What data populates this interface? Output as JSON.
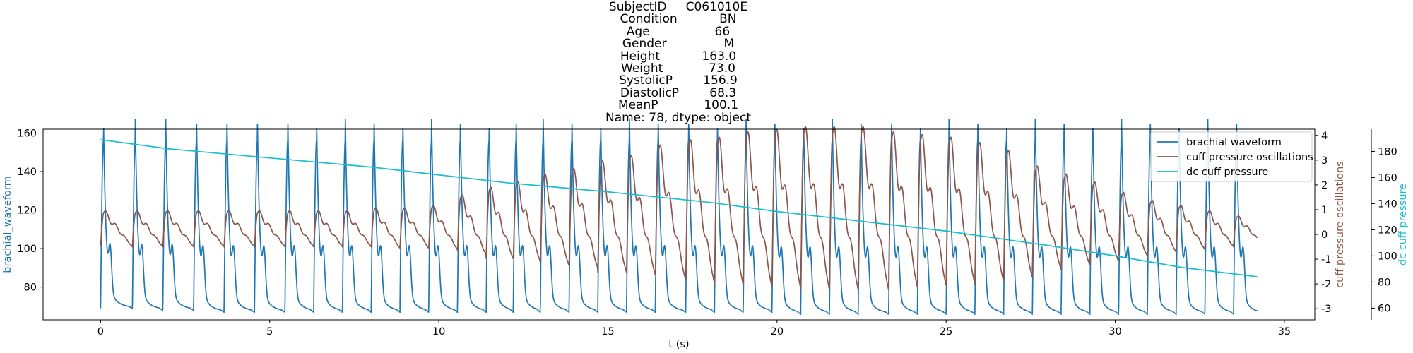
{
  "title_lines": [
    "SubjectID     C061010E",
    "Condition           BN",
    "Age                 66",
    "Gender               M",
    "Height           163.0",
    "Weight            73.0",
    "SystolicP        156.9",
    "DiastolicP        68.3",
    "MeanP            100.1",
    "Name: 78, dtype: object"
  ],
  "colors": {
    "brachial": "#1f77b4",
    "cuff_osc": "#8c564b",
    "dc_cuff": "#17becf"
  },
  "chart_data": {
    "type": "line",
    "x_axis": {
      "label": "t (s)",
      "lim": [
        -1.7,
        35.9
      ],
      "ticks": [
        0,
        5,
        10,
        15,
        20,
        25,
        30,
        35
      ]
    },
    "left_axis": {
      "label": "brachial_waveform",
      "lim": [
        63,
        162
      ],
      "ticks": [
        80,
        100,
        120,
        140,
        160
      ]
    },
    "right_axis_1": {
      "label": "cuff pressure oscillations",
      "lim": [
        -3.45,
        4.25
      ],
      "ticks": [
        -3,
        -2,
        -1,
        0,
        1,
        2,
        3,
        4
      ]
    },
    "right_axis_2": {
      "label": "dc cuff pressure",
      "lim": [
        51,
        197
      ],
      "ticks": [
        60,
        80,
        100,
        120,
        140,
        160,
        180
      ]
    },
    "legend": {
      "placement": "upper right",
      "entries": [
        "brachial waveform",
        "cuff pressure oscillations",
        "dc cuff pressure"
      ]
    },
    "grid": false,
    "series": [
      {
        "name": "brachial waveform",
        "axis": "left",
        "x_range": [
          0,
          34.2
        ],
        "beats": [
          {
            "t": 0.0,
            "min": 69,
            "max": 156
          },
          {
            "t": 0.94,
            "min": 68,
            "max": 156
          },
          {
            "t": 1.84,
            "min": 68,
            "max": 156
          },
          {
            "t": 2.75,
            "min": 67,
            "max": 156
          },
          {
            "t": 3.65,
            "min": 67,
            "max": 156
          },
          {
            "t": 4.55,
            "min": 67,
            "max": 156
          },
          {
            "t": 5.45,
            "min": 67,
            "max": 156
          },
          {
            "t": 6.3,
            "min": 67,
            "max": 156
          },
          {
            "t": 7.15,
            "min": 67,
            "max": 156
          },
          {
            "t": 8.0,
            "min": 67,
            "max": 156
          },
          {
            "t": 8.85,
            "min": 67,
            "max": 156
          },
          {
            "t": 9.7,
            "min": 67,
            "max": 156
          },
          {
            "t": 10.55,
            "min": 67,
            "max": 156
          },
          {
            "t": 11.4,
            "min": 67,
            "max": 156
          },
          {
            "t": 12.2,
            "min": 67,
            "max": 156
          },
          {
            "t": 13.0,
            "min": 67,
            "max": 156
          },
          {
            "t": 13.85,
            "min": 67,
            "max": 156
          },
          {
            "t": 14.7,
            "min": 67,
            "max": 156
          },
          {
            "t": 15.55,
            "min": 67,
            "max": 156
          },
          {
            "t": 16.4,
            "min": 67,
            "max": 156
          },
          {
            "t": 17.3,
            "min": 67,
            "max": 156
          },
          {
            "t": 18.15,
            "min": 67,
            "max": 156
          },
          {
            "t": 19.0,
            "min": 67,
            "max": 156
          },
          {
            "t": 19.85,
            "min": 66,
            "max": 156
          },
          {
            "t": 20.7,
            "min": 66,
            "max": 156
          },
          {
            "t": 21.55,
            "min": 66,
            "max": 156
          },
          {
            "t": 22.4,
            "min": 66,
            "max": 156
          },
          {
            "t": 23.3,
            "min": 66,
            "max": 156
          },
          {
            "t": 24.15,
            "min": 66,
            "max": 156
          },
          {
            "t": 25.0,
            "min": 66,
            "max": 156
          },
          {
            "t": 25.85,
            "min": 66,
            "max": 156
          },
          {
            "t": 26.7,
            "min": 66,
            "max": 156
          },
          {
            "t": 27.55,
            "min": 66,
            "max": 156
          },
          {
            "t": 28.4,
            "min": 66,
            "max": 156
          },
          {
            "t": 29.25,
            "min": 66,
            "max": 156
          },
          {
            "t": 30.1,
            "min": 66,
            "max": 156
          },
          {
            "t": 30.95,
            "min": 66,
            "max": 156
          },
          {
            "t": 31.8,
            "min": 66,
            "max": 156
          },
          {
            "t": 32.65,
            "min": 66,
            "max": 156
          },
          {
            "t": 33.5,
            "min": 66,
            "max": 156
          }
        ]
      },
      {
        "name": "cuff pressure oscillations",
        "axis": "right_1",
        "x_range": [
          0,
          34.2
        ],
        "beat_amplitudes": [
          0.9,
          0.9,
          0.9,
          0.9,
          0.9,
          0.9,
          0.9,
          0.9,
          0.9,
          1.0,
          1.0,
          1.1,
          1.5,
          1.8,
          2.0,
          2.3,
          2.5,
          2.8,
          3.0,
          3.4,
          3.6,
          3.7,
          3.9,
          4.0,
          4.1,
          4.1,
          4.1,
          3.9,
          3.8,
          3.7,
          3.5,
          3.2,
          2.6,
          2.3,
          2.0,
          1.6,
          1.3,
          1.1,
          0.9,
          0.7
        ]
      },
      {
        "name": "dc cuff pressure",
        "axis": "right_2",
        "points": [
          [
            0,
            189
          ],
          [
            2,
            182
          ],
          [
            5,
            175
          ],
          [
            8,
            168
          ],
          [
            10,
            162
          ],
          [
            12,
            156
          ],
          [
            15,
            149
          ],
          [
            18,
            141
          ],
          [
            20,
            134
          ],
          [
            22,
            128
          ],
          [
            25,
            119
          ],
          [
            28,
            108
          ],
          [
            30,
            100
          ],
          [
            32,
            91
          ],
          [
            34.2,
            84
          ]
        ]
      }
    ]
  }
}
